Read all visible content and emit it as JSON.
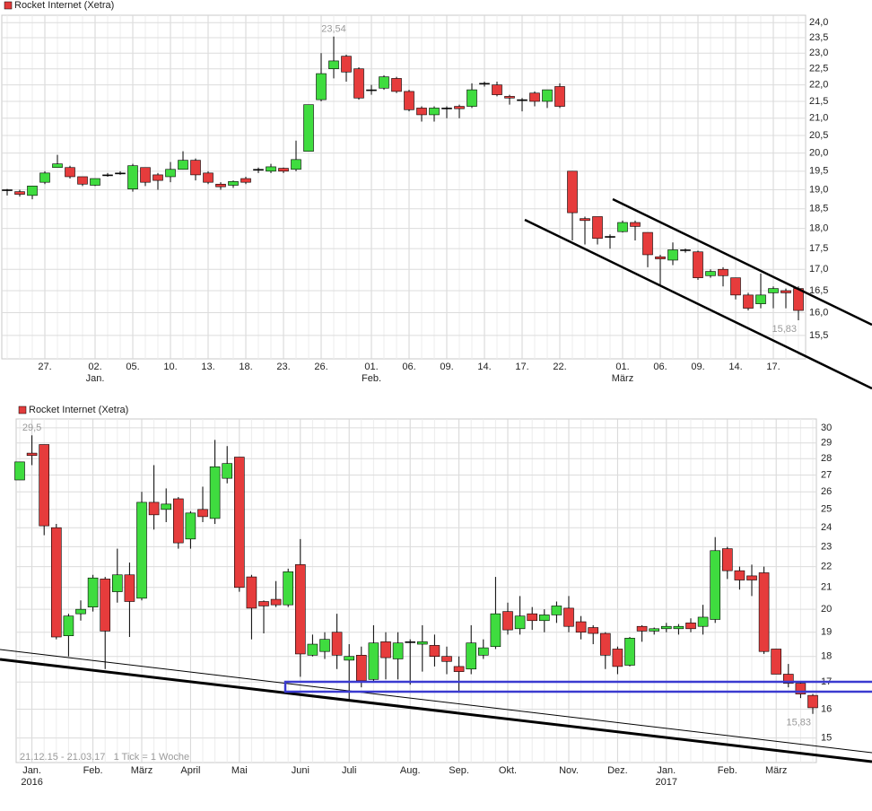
{
  "chart_data": [
    {
      "type": "candlestick",
      "log_scale": true,
      "grid": true,
      "ylim": [
        15.0,
        24.25
      ],
      "yticks": [
        {
          "value": 15.5,
          "label": "15,5"
        },
        {
          "value": 16.0,
          "label": "16,0"
        },
        {
          "value": 16.5,
          "label": "16,5"
        },
        {
          "value": 17.0,
          "label": "17,0"
        },
        {
          "value": 17.5,
          "label": "17,5"
        },
        {
          "value": 18.0,
          "label": "18,0"
        },
        {
          "value": 18.5,
          "label": "18,5"
        },
        {
          "value": 19.0,
          "label": "19,0"
        },
        {
          "value": 19.5,
          "label": "19,5"
        },
        {
          "value": 20.0,
          "label": "20,0"
        },
        {
          "value": 20.5,
          "label": "20,5"
        },
        {
          "value": 21.0,
          "label": "21,0"
        },
        {
          "value": 21.5,
          "label": "21,5"
        },
        {
          "value": 22.0,
          "label": "22,0"
        },
        {
          "value": 22.5,
          "label": "22,5"
        },
        {
          "value": 23.0,
          "label": "23,0"
        },
        {
          "value": 23.5,
          "label": "23,5"
        },
        {
          "value": 24.0,
          "label": "24,0"
        }
      ],
      "categories": [
        null,
        null,
        null,
        "27.",
        null,
        null,
        null,
        "02.",
        null,
        null,
        "05.",
        null,
        null,
        "10.",
        null,
        null,
        "13.",
        null,
        null,
        "18.",
        null,
        null,
        "23.",
        null,
        null,
        "26.",
        null,
        null,
        null,
        "01.",
        null,
        null,
        "06.",
        null,
        null,
        "09.",
        null,
        null,
        "14.",
        null,
        null,
        "17.",
        null,
        null,
        "22.",
        null,
        null,
        null,
        null,
        "01.",
        null,
        null,
        "06.",
        null,
        null,
        "09.",
        null,
        null,
        "14.",
        null,
        null,
        "17.",
        null,
        null
      ],
      "category_sublabels": [
        null,
        null,
        null,
        null,
        null,
        null,
        null,
        "Jan.",
        null,
        null,
        null,
        null,
        null,
        null,
        null,
        null,
        null,
        null,
        null,
        null,
        null,
        null,
        null,
        null,
        null,
        null,
        null,
        null,
        null,
        "Feb.",
        null,
        null,
        null,
        null,
        null,
        null,
        null,
        null,
        null,
        null,
        null,
        null,
        null,
        null,
        null,
        null,
        null,
        null,
        null,
        "März",
        null,
        null,
        null,
        null,
        null,
        null,
        null,
        null,
        null,
        null,
        null,
        null,
        null,
        null
      ],
      "series": [
        {
          "name": "Rocket Internet (Xetra)",
          "color": "#e23b3b",
          "up_color": "#3fdc3f",
          "down_color": "#e63c3c",
          "open": [
            19.0,
            18.95,
            18.85,
            19.2,
            19.6,
            19.6,
            19.35,
            19.12,
            19.4,
            19.45,
            19.02,
            19.6,
            19.4,
            19.35,
            19.55,
            19.8,
            19.45,
            19.15,
            19.12,
            19.3,
            19.55,
            19.5,
            19.58,
            19.55,
            20.05,
            21.55,
            22.5,
            22.9,
            22.5,
            21.85,
            21.9,
            22.2,
            21.8,
            21.3,
            21.1,
            21.3,
            21.35,
            21.35,
            22.05,
            22.0,
            21.65,
            21.55,
            21.75,
            21.5,
            21.95,
            19.5,
            18.25,
            18.3,
            17.8,
            17.92,
            18.15,
            17.9,
            17.3,
            17.22,
            17.47,
            17.42,
            16.85,
            17.0,
            16.8,
            16.4,
            16.2,
            16.45,
            16.5,
            16.55
          ],
          "high": [
            19.02,
            19.0,
            19.1,
            19.5,
            19.95,
            19.65,
            19.35,
            19.3,
            19.45,
            19.5,
            19.7,
            19.6,
            19.45,
            19.75,
            20.05,
            19.85,
            19.5,
            19.2,
            19.25,
            19.35,
            19.6,
            19.7,
            19.6,
            20.35,
            21.4,
            23.0,
            23.54,
            22.95,
            22.55,
            22.0,
            22.3,
            22.25,
            21.85,
            21.35,
            21.35,
            21.35,
            21.4,
            22.05,
            22.1,
            22.1,
            21.7,
            21.6,
            21.8,
            21.85,
            22.05,
            19.5,
            18.3,
            18.3,
            17.85,
            18.2,
            18.2,
            17.9,
            17.35,
            17.65,
            17.5,
            17.45,
            17.0,
            17.05,
            16.8,
            16.45,
            16.9,
            16.6,
            16.55,
            16.6
          ],
          "low": [
            18.85,
            18.82,
            18.75,
            19.15,
            19.6,
            19.3,
            19.1,
            19.1,
            19.35,
            19.4,
            18.95,
            19.1,
            19.0,
            19.2,
            19.55,
            19.25,
            19.15,
            19.0,
            19.05,
            19.15,
            19.45,
            19.45,
            19.45,
            19.5,
            20.05,
            21.5,
            22.2,
            22.1,
            21.55,
            21.7,
            21.85,
            21.75,
            21.2,
            20.9,
            20.9,
            21.0,
            21.0,
            21.3,
            21.95,
            21.65,
            21.4,
            21.2,
            21.35,
            21.3,
            21.3,
            17.7,
            17.6,
            17.6,
            17.5,
            17.9,
            17.7,
            17.05,
            16.6,
            17.1,
            17.4,
            16.75,
            16.8,
            16.6,
            16.3,
            16.05,
            16.1,
            16.1,
            16.1,
            15.83
          ],
          "close": [
            19.0,
            18.88,
            19.1,
            19.45,
            19.7,
            19.35,
            19.15,
            19.3,
            19.4,
            19.45,
            19.65,
            19.2,
            19.25,
            19.55,
            19.8,
            19.4,
            19.2,
            19.08,
            19.22,
            19.2,
            19.55,
            19.62,
            19.5,
            19.82,
            21.4,
            22.35,
            22.75,
            22.4,
            21.6,
            21.85,
            22.25,
            21.8,
            21.25,
            21.1,
            21.3,
            21.3,
            21.28,
            21.85,
            22.05,
            21.7,
            21.6,
            21.55,
            21.5,
            21.85,
            21.35,
            18.4,
            18.2,
            17.75,
            17.8,
            18.15,
            18.05,
            17.35,
            17.25,
            17.47,
            17.47,
            16.8,
            16.95,
            16.85,
            16.4,
            16.1,
            16.4,
            16.55,
            16.45,
            16.05
          ]
        }
      ],
      "annotations": [
        {
          "value": 23.54,
          "label": "23,54"
        },
        {
          "value": 15.83,
          "label": "15,83"
        }
      ]
    },
    {
      "type": "candlestick",
      "log_scale": true,
      "grid": true,
      "ylim": [
        14.2,
        30.6
      ],
      "yticks": [
        15,
        16,
        17,
        18,
        19,
        20,
        21,
        22,
        23,
        24,
        25,
        26,
        27,
        28,
        29,
        30
      ],
      "categories": [
        null,
        "Jan.",
        null,
        null,
        null,
        null,
        "Feb.",
        null,
        null,
        null,
        "März",
        null,
        null,
        null,
        "April",
        null,
        null,
        null,
        "Mai",
        null,
        null,
        null,
        null,
        "Juni",
        null,
        null,
        null,
        "Juli",
        null,
        null,
        null,
        null,
        "Aug.",
        null,
        null,
        null,
        "Sep.",
        null,
        null,
        null,
        "Okt.",
        null,
        null,
        null,
        null,
        "Nov.",
        null,
        null,
        null,
        "Dez.",
        null,
        null,
        null,
        "Jan.",
        null,
        null,
        null,
        null,
        "Feb.",
        null,
        null,
        null,
        "März",
        null,
        null,
        null
      ],
      "category_sublabels": [
        null,
        "2016",
        null,
        null,
        null,
        null,
        null,
        null,
        null,
        null,
        null,
        null,
        null,
        null,
        null,
        null,
        null,
        null,
        null,
        null,
        null,
        null,
        null,
        null,
        null,
        null,
        null,
        null,
        null,
        null,
        null,
        null,
        null,
        null,
        null,
        null,
        null,
        null,
        null,
        null,
        null,
        null,
        null,
        null,
        null,
        null,
        null,
        null,
        null,
        null,
        null,
        null,
        null,
        "2017",
        null,
        null,
        null,
        null,
        null,
        null,
        null,
        null,
        null,
        null,
        null,
        null
      ],
      "series": [
        {
          "name": "Rocket Internet (Xetra)",
          "color": "#e23b3b",
          "up_color": "#3fdc3f",
          "down_color": "#e63c3c",
          "open": [
            26.7,
            28.35,
            28.9,
            24.0,
            18.85,
            19.8,
            20.1,
            21.4,
            20.8,
            21.6,
            20.5,
            25.4,
            25.0,
            25.6,
            23.4,
            25.0,
            24.5,
            26.8,
            28.1,
            21.5,
            20.35,
            20.45,
            20.2,
            22.1,
            18.05,
            18.2,
            19.0,
            17.85,
            18.05,
            17.1,
            18.6,
            17.9,
            18.6,
            18.5,
            18.45,
            18.0,
            17.6,
            17.5,
            18.05,
            18.4,
            19.9,
            19.15,
            19.8,
            19.5,
            19.75,
            20.05,
            19.45,
            19.2,
            18.95,
            18.3,
            17.65,
            19.25,
            19.05,
            19.15,
            19.15,
            19.4,
            19.25,
            19.55,
            22.9,
            21.8,
            21.55,
            21.7,
            18.3,
            17.3,
            16.95,
            16.5
          ],
          "high": [
            27.8,
            29.5,
            28.9,
            24.2,
            19.8,
            20.4,
            21.6,
            21.5,
            22.9,
            22.2,
            26.0,
            27.6,
            26.2,
            25.7,
            24.9,
            26.3,
            29.2,
            28.8,
            28.1,
            21.6,
            20.4,
            21.3,
            21.9,
            23.4,
            18.9,
            19.0,
            19.8,
            18.5,
            18.4,
            19.3,
            19.0,
            19.0,
            18.7,
            19.3,
            18.9,
            18.4,
            18.0,
            19.3,
            18.7,
            21.5,
            20.3,
            20.6,
            20.1,
            20.0,
            20.35,
            20.6,
            19.7,
            19.3,
            19.0,
            18.4,
            18.8,
            19.3,
            19.2,
            19.4,
            19.35,
            19.6,
            20.2,
            23.5,
            23.0,
            22.0,
            22.1,
            22.0,
            18.3,
            17.7,
            17.0,
            16.55
          ],
          "low": [
            26.7,
            27.6,
            23.6,
            18.7,
            18.0,
            19.5,
            19.9,
            17.5,
            20.3,
            18.8,
            20.4,
            23.9,
            24.3,
            22.9,
            22.9,
            24.3,
            24.2,
            26.5,
            20.8,
            18.7,
            18.95,
            20.1,
            20.1,
            17.2,
            18.0,
            17.9,
            17.5,
            16.3,
            16.8,
            17.0,
            17.1,
            17.1,
            16.9,
            17.4,
            17.6,
            17.3,
            16.6,
            17.3,
            17.9,
            18.3,
            18.9,
            18.9,
            19.1,
            19.0,
            19.4,
            19.0,
            18.7,
            18.5,
            17.5,
            17.3,
            17.6,
            18.6,
            18.9,
            19.0,
            18.9,
            19.0,
            18.9,
            19.4,
            21.4,
            20.9,
            20.6,
            18.1,
            17.3,
            16.8,
            16.4,
            15.83
          ],
          "close": [
            27.8,
            28.2,
            24.1,
            18.8,
            19.7,
            20.0,
            21.45,
            19.05,
            21.6,
            20.35,
            25.4,
            24.7,
            25.3,
            23.2,
            24.8,
            24.6,
            27.5,
            27.7,
            21.0,
            20.05,
            20.15,
            20.2,
            21.75,
            18.1,
            18.5,
            18.7,
            18.05,
            18.0,
            17.05,
            18.55,
            17.95,
            18.55,
            18.6,
            18.6,
            18.0,
            17.8,
            17.4,
            18.55,
            18.35,
            19.8,
            19.1,
            19.7,
            19.5,
            19.75,
            20.15,
            19.25,
            19.0,
            18.95,
            18.05,
            17.6,
            18.75,
            19.05,
            19.15,
            19.25,
            19.25,
            19.15,
            19.65,
            22.8,
            21.8,
            21.35,
            21.35,
            18.2,
            17.3,
            16.95,
            16.55,
            16.05
          ]
        }
      ],
      "annotations": [
        {
          "value": 29.5,
          "label": "29,5"
        },
        {
          "value": 15.83,
          "label": "15,83"
        }
      ],
      "note": "21.12.15 - 21.03.17   1 Tick = 1 Woche"
    }
  ]
}
